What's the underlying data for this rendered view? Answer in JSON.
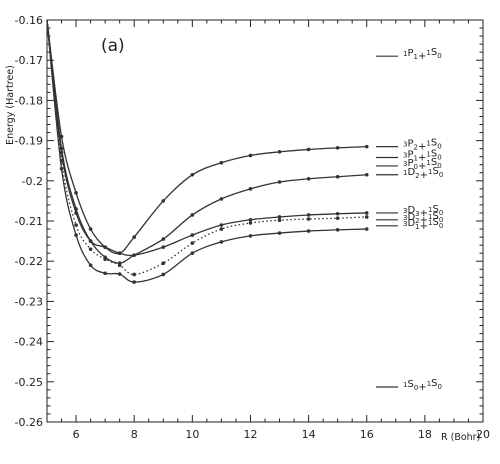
{
  "chart_data": {
    "type": "line",
    "panel_label": "(a)",
    "ylabel": "Energy (Hartree)",
    "xlabel": "R (Bohr)",
    "xlim": [
      5,
      20
    ],
    "ylim": [
      -0.26,
      -0.16
    ],
    "xticks": [
      6,
      8,
      10,
      12,
      14,
      16,
      18,
      20
    ],
    "yticks": [
      -0.16,
      -0.17,
      -0.18,
      -0.19,
      -0.2,
      -0.21,
      -0.22,
      -0.23,
      -0.24,
      -0.25,
      -0.26
    ],
    "ytick_labels": [
      "-0.16",
      "-0.17",
      "-0.18",
      "-0.19",
      "-0.2",
      "-0.21",
      "-0.22",
      "-0.23",
      "-0.24",
      "-0.25",
      "-0.26"
    ],
    "grid": false,
    "series": [
      {
        "style": "solid",
        "x": [
          5,
          5.5,
          6,
          6.5,
          7,
          7.5,
          8,
          9,
          10,
          11,
          12,
          13,
          14,
          15,
          16
        ],
        "y": [
          -0.16,
          -0.189,
          -0.203,
          -0.212,
          -0.2165,
          -0.218,
          -0.214,
          -0.205,
          -0.1985,
          -0.1955,
          -0.1937,
          -0.1928,
          -0.1922,
          -0.1918,
          -0.1915
        ]
      },
      {
        "style": "solid",
        "x": [
          5,
          5.5,
          6,
          6.5,
          7,
          7.5,
          8,
          9,
          10,
          11,
          12,
          13,
          14,
          15,
          16
        ],
        "y": [
          -0.16,
          -0.192,
          -0.207,
          -0.215,
          -0.219,
          -0.2205,
          -0.2185,
          -0.2145,
          -0.2085,
          -0.2045,
          -0.202,
          -0.2003,
          -0.1995,
          -0.199,
          -0.1985
        ]
      },
      {
        "style": "solid",
        "x": [
          5,
          5.5,
          6,
          6.5,
          7,
          7.5,
          8,
          9,
          10,
          11,
          12,
          13,
          14,
          15,
          16
        ],
        "y": [
          -0.16,
          -0.193,
          -0.208,
          -0.215,
          -0.2165,
          -0.218,
          -0.2185,
          -0.2165,
          -0.2135,
          -0.211,
          -0.2097,
          -0.209,
          -0.2085,
          -0.2082,
          -0.208
        ]
      },
      {
        "style": "dotted",
        "x": [
          5,
          5.5,
          6,
          6.5,
          7,
          7.5,
          8,
          9,
          10,
          11,
          12,
          13,
          14,
          15,
          16
        ],
        "y": [
          -0.16,
          -0.195,
          -0.211,
          -0.217,
          -0.2195,
          -0.221,
          -0.2233,
          -0.2205,
          -0.2155,
          -0.212,
          -0.2105,
          -0.2098,
          -0.2095,
          -0.2093,
          -0.209
        ]
      },
      {
        "style": "solid",
        "x": [
          5,
          5.5,
          6,
          6.5,
          7,
          7.5,
          8,
          9,
          10,
          11,
          12,
          13,
          14,
          15,
          16
        ],
        "y": [
          -0.16,
          -0.197,
          -0.2135,
          -0.221,
          -0.223,
          -0.2232,
          -0.2252,
          -0.2233,
          -0.218,
          -0.2152,
          -0.2137,
          -0.213,
          -0.2125,
          -0.2122,
          -0.212
        ]
      }
    ],
    "asymptotes": [
      {
        "y": -0.169,
        "label": [
          [
            "sup",
            "1"
          ],
          [
            "base",
            "P"
          ],
          [
            "sub",
            "1"
          ],
          [
            "base",
            "+"
          ],
          [
            "sup",
            "1"
          ],
          [
            "base",
            "S"
          ],
          [
            "sub",
            "0"
          ]
        ]
      },
      {
        "y": -0.1915,
        "label": [
          [
            "sup",
            "3"
          ],
          [
            "base",
            "P"
          ],
          [
            "sub",
            "2"
          ],
          [
            "base",
            "+"
          ],
          [
            "sup",
            "1"
          ],
          [
            "base",
            "S"
          ],
          [
            "sub",
            "0"
          ]
        ]
      },
      {
        "y": -0.1942,
        "label": [
          [
            "sup",
            "3"
          ],
          [
            "base",
            "P"
          ],
          [
            "sub",
            "1"
          ],
          [
            "base",
            "+"
          ],
          [
            "sup",
            "1"
          ],
          [
            "base",
            "S"
          ],
          [
            "sub",
            "0"
          ]
        ]
      },
      {
        "y": -0.1963,
        "label": [
          [
            "sup",
            "3"
          ],
          [
            "base",
            "P"
          ],
          [
            "sub",
            "0"
          ],
          [
            "base",
            "+"
          ],
          [
            "sup",
            "1"
          ],
          [
            "base",
            "S"
          ],
          [
            "sub",
            "0"
          ]
        ]
      },
      {
        "y": -0.1985,
        "label": [
          [
            "sup",
            "1"
          ],
          [
            "base",
            "D"
          ],
          [
            "sub",
            "2"
          ],
          [
            "base",
            "+"
          ],
          [
            "sup",
            "1"
          ],
          [
            "base",
            "S"
          ],
          [
            "sub",
            "0"
          ]
        ]
      },
      {
        "y": -0.208,
        "label": [
          [
            "sup",
            "3"
          ],
          [
            "base",
            "D"
          ],
          [
            "sub",
            "3"
          ],
          [
            "base",
            "+"
          ],
          [
            "sup",
            "1"
          ],
          [
            "base",
            "S"
          ],
          [
            "sub",
            "0"
          ]
        ]
      },
      {
        "y": -0.2097,
        "label": [
          [
            "sup",
            "3"
          ],
          [
            "base",
            "D"
          ],
          [
            "sub",
            "2"
          ],
          [
            "base",
            "+"
          ],
          [
            "sup",
            "1"
          ],
          [
            "base",
            "S"
          ],
          [
            "sub",
            "0"
          ]
        ]
      },
      {
        "y": -0.2112,
        "label": [
          [
            "sup",
            "3"
          ],
          [
            "base",
            "D"
          ],
          [
            "sub",
            "1"
          ],
          [
            "base",
            "+"
          ],
          [
            "sup",
            "1"
          ],
          [
            "base",
            "S"
          ],
          [
            "sub",
            "0"
          ]
        ]
      },
      {
        "y": -0.2513,
        "label": [
          [
            "sup",
            "1"
          ],
          [
            "base",
            "S"
          ],
          [
            "sub",
            "0"
          ],
          [
            "base",
            "+"
          ],
          [
            "sup",
            "1"
          ],
          [
            "base",
            "S"
          ],
          [
            "sub",
            "0"
          ]
        ]
      }
    ],
    "colors": {
      "line": "#333333",
      "text": "#222222",
      "axis": "#222222"
    }
  }
}
